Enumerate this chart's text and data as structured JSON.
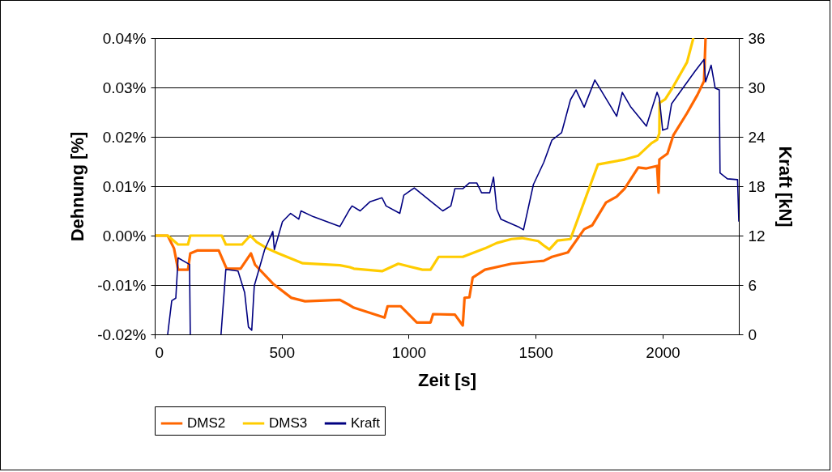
{
  "chart_data": {
    "type": "line",
    "xlabel": "Zeit [s]",
    "ylabel": "Dehnung [%]",
    "y2label": "Kraft [kN]",
    "xlim": [
      0,
      2300
    ],
    "xticks": [
      0,
      500,
      1000,
      1500,
      2000
    ],
    "ylim": [
      -0.02,
      0.04
    ],
    "yticks": [
      {
        "value": -0.02,
        "label": "-0.02%"
      },
      {
        "value": -0.01,
        "label": "-0.01%"
      },
      {
        "value": 0,
        "label": "0.00%"
      },
      {
        "value": 0.01,
        "label": "0.01%"
      },
      {
        "value": 0.02,
        "label": "0.02%"
      },
      {
        "value": 0.03,
        "label": "0.03%"
      },
      {
        "value": 0.04,
        "label": "0.04%"
      }
    ],
    "y2lim": [
      0,
      36
    ],
    "y2ticks": [
      0,
      6,
      12,
      18,
      24,
      30,
      36
    ],
    "grid": "y",
    "legend": "bottom",
    "line_style": "solid",
    "marker": "none",
    "series": [
      {
        "name": "DMS2",
        "color": "#ff6600",
        "x": [
          3,
          51,
          76,
          92,
          131,
          140,
          169,
          252,
          283,
          338,
          379,
          395,
          465,
          538,
          592,
          729,
          768,
          784,
          905,
          917,
          968,
          1032,
          1086,
          1096,
          1182,
          1213,
          1220,
          1239,
          1252,
          1300,
          1405,
          1510,
          1532,
          1564,
          1627,
          1691,
          1723,
          1777,
          1819,
          1850,
          1904,
          1936,
          1978,
          1984,
          1987,
          2019,
          2042,
          2096,
          2137,
          2163,
          2169
        ],
        "values": [
          0,
          0,
          -0.0026,
          -0.0069,
          -0.0069,
          -0.0036,
          -0.003,
          -0.003,
          -0.0067,
          -0.0067,
          -0.0036,
          -0.0059,
          -0.0097,
          -0.0126,
          -0.0133,
          -0.013,
          -0.0141,
          -0.0146,
          -0.0166,
          -0.0143,
          -0.0143,
          -0.0176,
          -0.0176,
          -0.0159,
          -0.016,
          -0.0182,
          -0.0126,
          -0.0125,
          -0.0085,
          -0.0069,
          -0.0057,
          -0.0052,
          -0.0051,
          -0.0043,
          -0.0034,
          0.0013,
          0.0021,
          0.0067,
          0.0079,
          0.0095,
          0.0138,
          0.0136,
          0.0141,
          0.0087,
          0.0154,
          0.0166,
          0.0203,
          0.0248,
          0.0285,
          0.0313,
          0.04
        ]
      },
      {
        "name": "DMS3",
        "color": "#ffcc00",
        "x": [
          3,
          51,
          92,
          131,
          140,
          264,
          280,
          344,
          376,
          401,
          443,
          487,
          583,
          729,
          768,
          784,
          895,
          959,
          1054,
          1086,
          1118,
          1213,
          1300,
          1347,
          1405,
          1446,
          1510,
          1532,
          1554,
          1586,
          1637,
          1745,
          1850,
          1904,
          1956,
          1978,
          1987,
          1988,
          2010,
          2042,
          2096,
          2121
        ],
        "values": [
          0,
          0,
          -0.0018,
          -0.0018,
          0,
          0,
          -0.0018,
          -0.0018,
          0,
          -0.0013,
          -0.0026,
          -0.0036,
          -0.0056,
          -0.006,
          -0.0064,
          -0.0067,
          -0.0072,
          -0.0057,
          -0.0069,
          -0.0069,
          -0.0043,
          -0.0043,
          -0.0026,
          -0.0015,
          -0.0007,
          -0.0005,
          -0.0011,
          -0.002,
          -0.0028,
          -0.001,
          -0.0007,
          0.0144,
          0.0154,
          0.0162,
          0.0187,
          0.0194,
          0.0207,
          0.0269,
          0.0276,
          0.0302,
          0.0351,
          0.04
        ]
      },
      {
        "name": "Kraft",
        "color": "#000080",
        "axis": "y2",
        "x": [
          51,
          67,
          83,
          92,
          137,
          140,
          200,
          261,
          280,
          328,
          354,
          369,
          382,
          392,
          433,
          465,
          471,
          503,
          535,
          567,
          576,
          624,
          729,
          768,
          777,
          809,
          847,
          895,
          911,
          965,
          981,
          1022,
          1086,
          1134,
          1166,
          1182,
          1213,
          1239,
          1268,
          1287,
          1319,
          1334,
          1347,
          1363,
          1436,
          1452,
          1491,
          1532,
          1564,
          1602,
          1637,
          1659,
          1691,
          1733,
          1819,
          1841,
          1873,
          1936,
          1978,
          1987,
          2000,
          2019,
          2035,
          2128,
          2163,
          2169,
          2191,
          2207,
          2223,
          2226,
          2255,
          2295,
          2300
        ],
        "values": [
          0,
          4.1,
          4.4,
          9.3,
          8.5,
          0,
          null,
          0,
          7.9,
          7.7,
          5.1,
          0.9,
          0.5,
          5.9,
          10.3,
          12.5,
          10.3,
          13.7,
          14.7,
          14,
          15,
          14.3,
          13.1,
          15.2,
          15.6,
          15,
          16.1,
          16.6,
          15.6,
          14.7,
          16.9,
          17.8,
          16.2,
          15,
          15.6,
          17.7,
          17.7,
          18.4,
          18.4,
          17.2,
          17.2,
          19.1,
          15.2,
          14,
          13,
          12.7,
          18.2,
          20.9,
          23.6,
          24.5,
          28.5,
          29.7,
          27.6,
          30.9,
          26.5,
          29.4,
          27.7,
          25.3,
          29.4,
          28.7,
          24.8,
          25,
          28,
          32,
          33.4,
          30.7,
          32.7,
          29.9,
          29.7,
          19.6,
          18.9,
          18.8,
          13.7
        ]
      }
    ]
  }
}
